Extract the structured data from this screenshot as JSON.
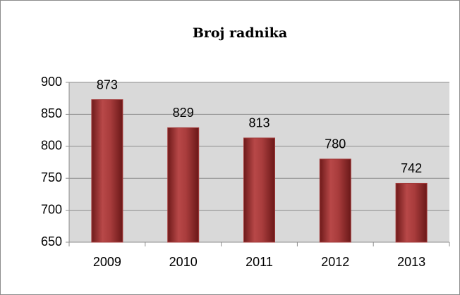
{
  "chart_data": {
    "type": "bar",
    "title": "Broj radnika",
    "categories": [
      "2009",
      "2010",
      "2011",
      "2012",
      "2013"
    ],
    "values": [
      873,
      829,
      813,
      780,
      742
    ],
    "color": "#a33a3a",
    "ylim": [
      650,
      900
    ],
    "yticks": [
      650,
      700,
      750,
      800,
      850,
      900
    ],
    "grid": true
  }
}
